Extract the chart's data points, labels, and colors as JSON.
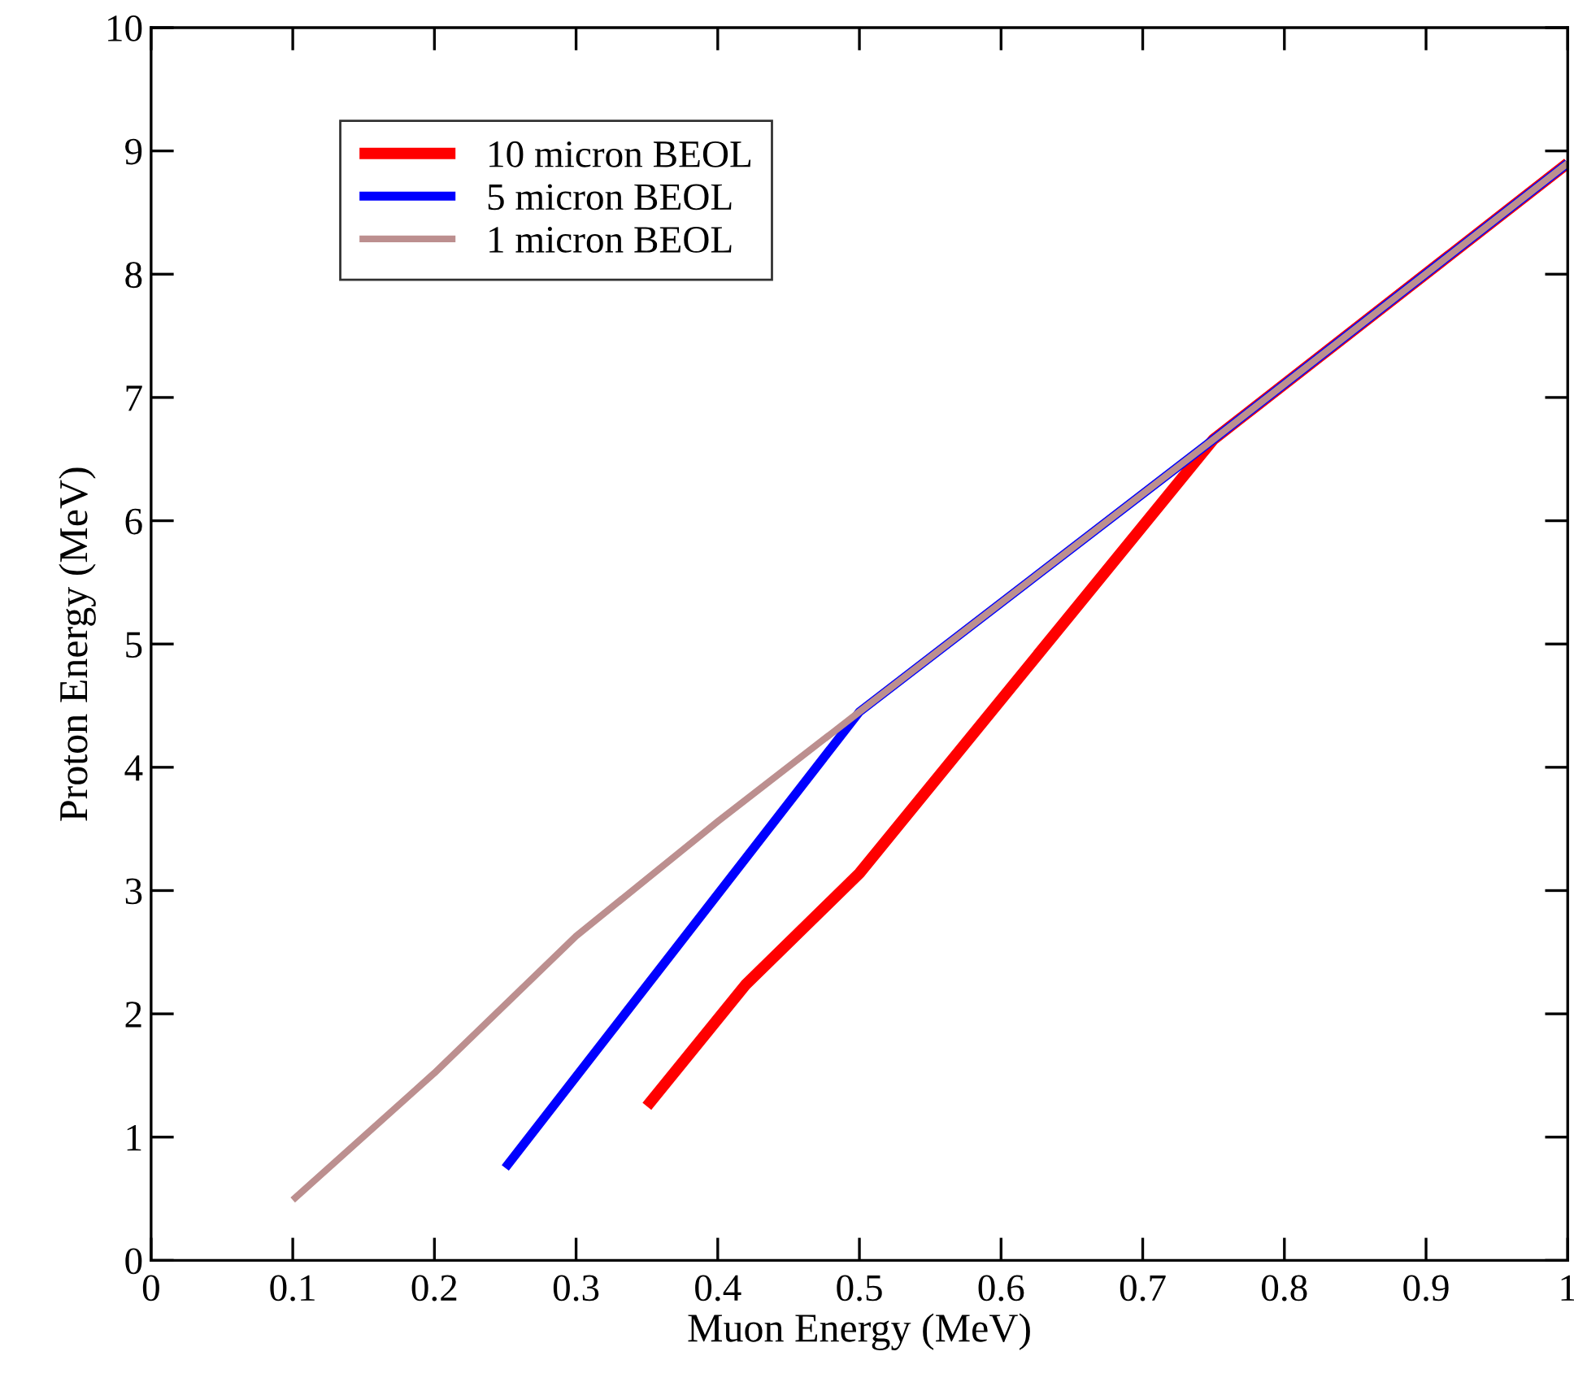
{
  "chart_data": {
    "type": "line",
    "xlabel": "Muon Energy (MeV)",
    "ylabel": "Proton Energy (MeV)",
    "xlim": [
      0,
      1
    ],
    "ylim": [
      0,
      10
    ],
    "xticks": [
      0,
      0.1,
      0.2,
      0.3,
      0.4,
      0.5,
      0.6,
      0.7,
      0.8,
      0.9,
      1
    ],
    "yticks": [
      0,
      1,
      2,
      3,
      4,
      5,
      6,
      7,
      8,
      9,
      10
    ],
    "grid": false,
    "legend": "top left",
    "marker": "none",
    "line_style": "solid",
    "series": [
      {
        "name": "10 micron BEOL",
        "color": "#ff0000",
        "x": [
          0.35,
          0.42,
          0.5,
          0.75,
          1.0
        ],
        "values": [
          1.25,
          2.24,
          3.14,
          6.66,
          8.9
        ]
      },
      {
        "name": "5 micron BEOL",
        "color": "#0000ff",
        "x": [
          0.25,
          0.5,
          0.75,
          1.0
        ],
        "values": [
          0.75,
          4.45,
          6.66,
          8.9
        ]
      },
      {
        "name": "1 micron BEOL",
        "color": "#bc8f8f",
        "x": [
          0.1,
          0.2,
          0.3,
          0.4,
          0.5,
          0.75,
          1.0
        ],
        "values": [
          0.49,
          1.52,
          2.63,
          3.56,
          4.45,
          6.66,
          8.9
        ]
      }
    ]
  }
}
